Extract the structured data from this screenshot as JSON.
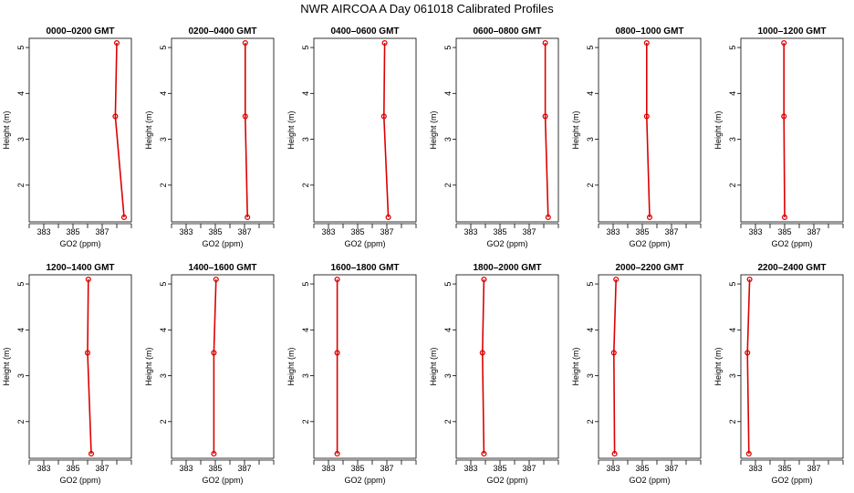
{
  "title": "NWR AIRCOA A  Day 061018  Calibrated Profiles",
  "colors": {
    "profile": "#dd0000",
    "axis": "#000000"
  },
  "chart_data": {
    "type": "line",
    "layout": "small-multiples 2 rows x 6 columns",
    "xlabel": "GO2 (ppm)",
    "ylabel": "Height (m)",
    "xlim": [
      382,
      389
    ],
    "ylim": [
      1.2,
      5.2
    ],
    "x_ticks": [
      383,
      385,
      387
    ],
    "y_ticks": [
      2,
      3,
      4,
      5
    ],
    "grid": false,
    "heights": [
      1.3,
      3.5,
      5.1
    ],
    "panels": [
      {
        "title": "0000–0200 GMT",
        "values": [
          388.5,
          387.9,
          388.0
        ]
      },
      {
        "title": "0200–0400 GMT",
        "values": [
          387.2,
          387.05,
          387.05
        ]
      },
      {
        "title": "0400–0600 GMT",
        "values": [
          387.1,
          386.8,
          386.85
        ]
      },
      {
        "title": "0600–0800 GMT",
        "values": [
          388.3,
          388.1,
          388.1
        ]
      },
      {
        "title": "0800–1000 GMT",
        "values": [
          385.5,
          385.3,
          385.3
        ]
      },
      {
        "title": "1000–1200 GMT",
        "values": [
          385.0,
          384.95,
          384.95
        ]
      },
      {
        "title": "1200–1400 GMT",
        "values": [
          386.25,
          386.0,
          386.05
        ]
      },
      {
        "title": "1400–1600 GMT",
        "values": [
          384.9,
          384.9,
          385.05
        ]
      },
      {
        "title": "1600–1800 GMT",
        "values": [
          383.6,
          383.6,
          383.6
        ]
      },
      {
        "title": "1800–2000 GMT",
        "values": [
          383.9,
          383.8,
          383.9
        ]
      },
      {
        "title": "2000–2200 GMT",
        "values": [
          383.1,
          383.05,
          383.2
        ]
      },
      {
        "title": "2200–2400 GMT",
        "values": [
          382.55,
          382.45,
          382.6
        ]
      }
    ]
  }
}
